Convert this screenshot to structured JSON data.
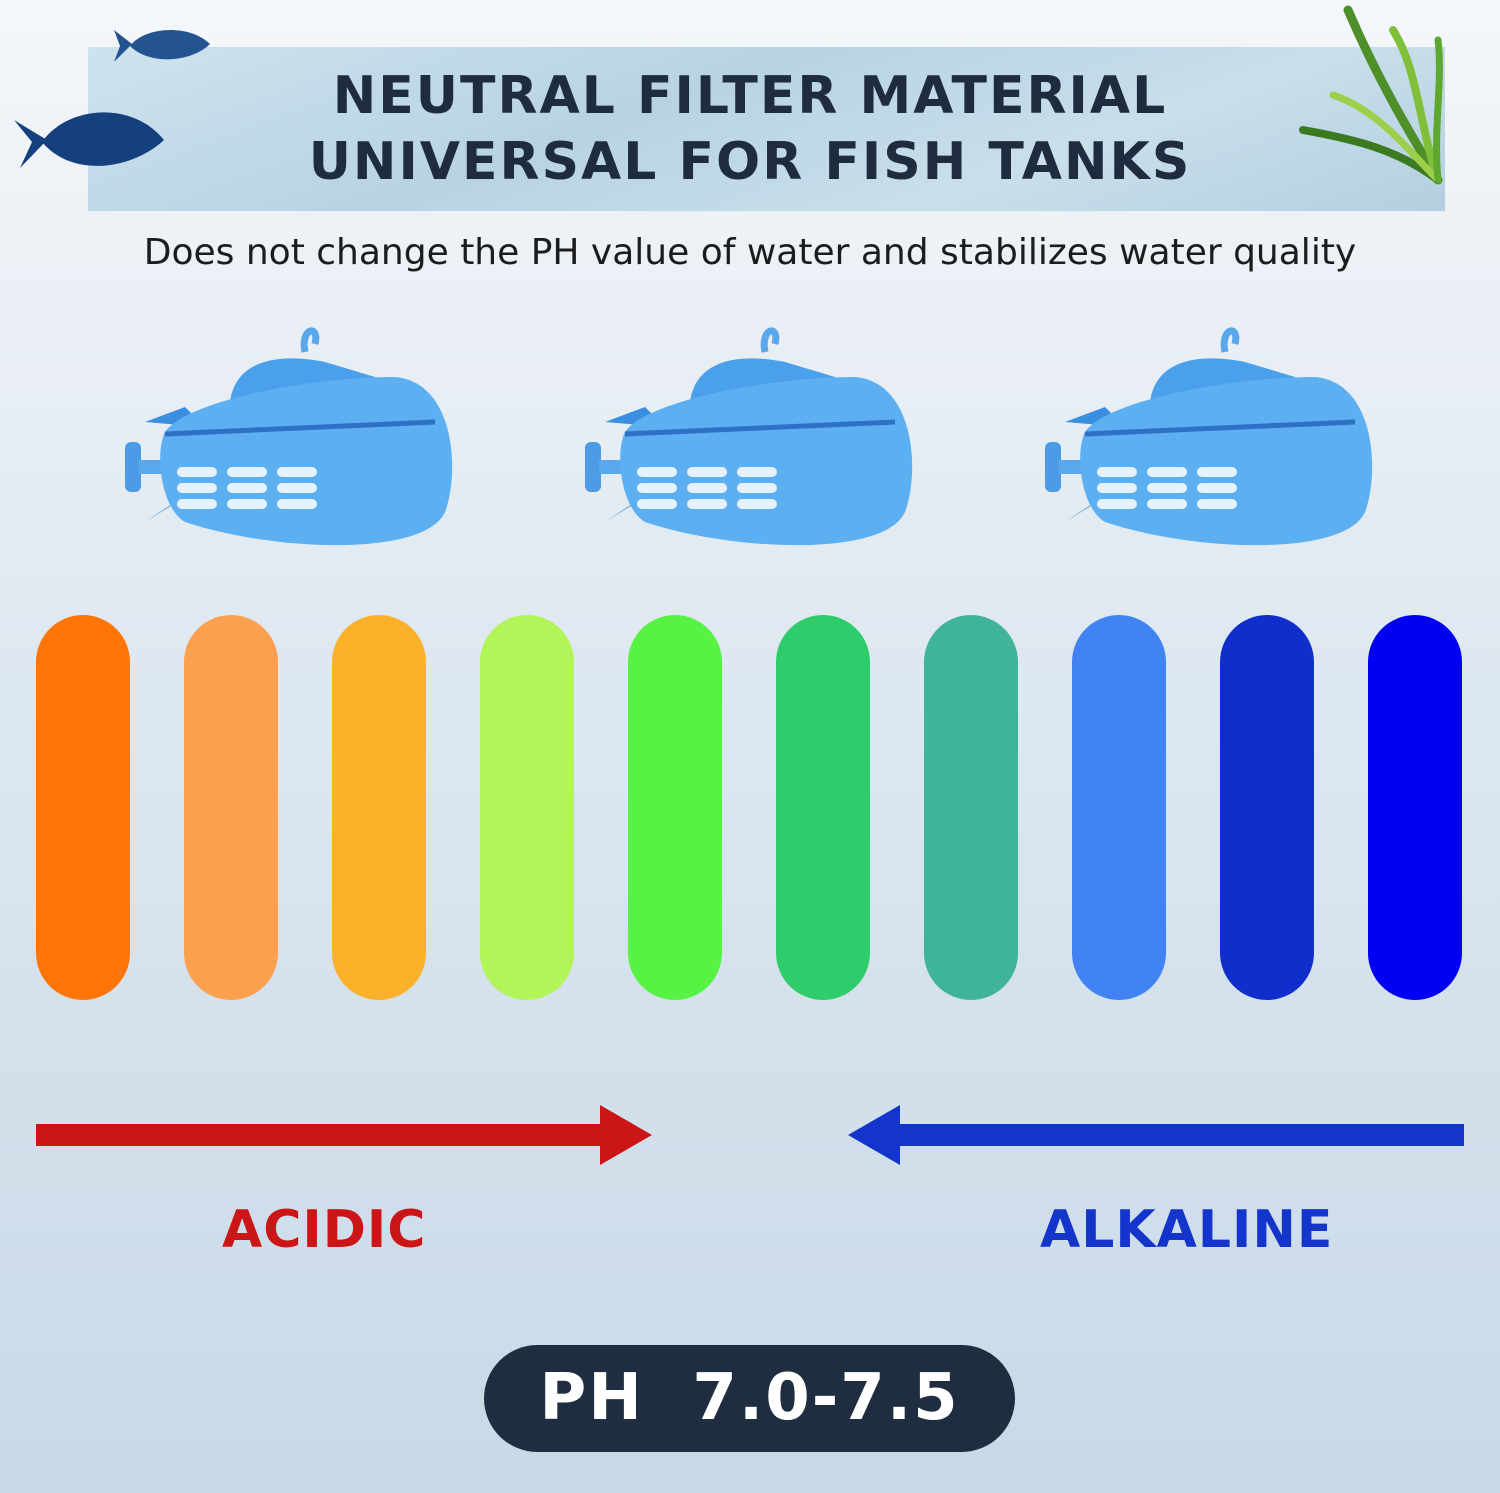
{
  "banner": {
    "title_line1": "NEUTRAL FILTER MATERIAL",
    "title_line2": "UNIVERSAL FOR FISH TANKS"
  },
  "subtitle": "Does not change the PH value of water and stabilizes water quality",
  "products": [
    {
      "icon": "submarine-filter-icon"
    },
    {
      "icon": "submarine-filter-icon"
    },
    {
      "icon": "submarine-filter-icon"
    }
  ],
  "ph_scale": {
    "colors": [
      "#FF7508",
      "#FBA04E",
      "#FBB22A",
      "#B2F558",
      "#58F244",
      "#2ECC6A",
      "#3FB39B",
      "#4283F3",
      "#0F2ECC",
      "#0000F2"
    ]
  },
  "arrows": {
    "acidic": {
      "label": "ACIDIC",
      "color": "#CC1517"
    },
    "alkaline": {
      "label": "ALKALINE",
      "color": "#1435CC"
    }
  },
  "ph_badge": "PH  7.0-7.5"
}
